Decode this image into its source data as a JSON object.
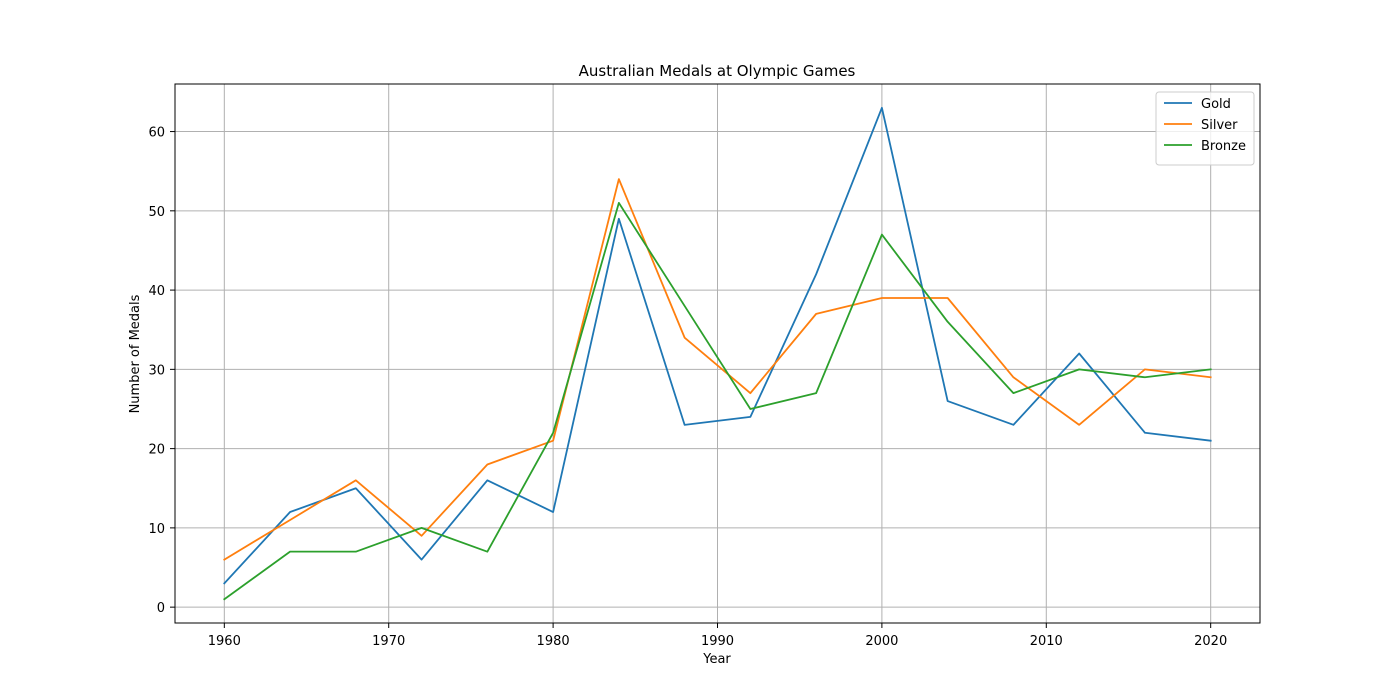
{
  "chart_data": {
    "type": "line",
    "title": "Australian Medals at Olympic Games",
    "xlabel": "Year",
    "ylabel": "Number of Medals",
    "x": [
      1960,
      1964,
      1968,
      1972,
      1976,
      1980,
      1984,
      1988,
      1992,
      1996,
      2000,
      2004,
      2008,
      2012,
      2016,
      2020
    ],
    "series": [
      {
        "name": "Gold",
        "color": "#1f77b4",
        "values": [
          3,
          12,
          15,
          6,
          16,
          12,
          49,
          23,
          24,
          42,
          63,
          26,
          23,
          32,
          22,
          21
        ]
      },
      {
        "name": "Silver",
        "color": "#ff7f0e",
        "values": [
          6,
          11,
          16,
          9,
          18,
          21,
          54,
          34,
          27,
          37,
          39,
          39,
          29,
          23,
          30,
          29
        ]
      },
      {
        "name": "Bronze",
        "color": "#2ca02c",
        "values": [
          1,
          7,
          7,
          10,
          7,
          22,
          51,
          38,
          25,
          27,
          47,
          36,
          27,
          30,
          29,
          30
        ]
      }
    ],
    "xlim": [
      1957,
      2023
    ],
    "ylim": [
      -2,
      66
    ],
    "xticks": [
      1960,
      1970,
      1980,
      1990,
      2000,
      2010,
      2020
    ],
    "yticks": [
      0,
      10,
      20,
      30,
      40,
      50,
      60
    ],
    "grid": true,
    "legend_position": "top-right"
  }
}
